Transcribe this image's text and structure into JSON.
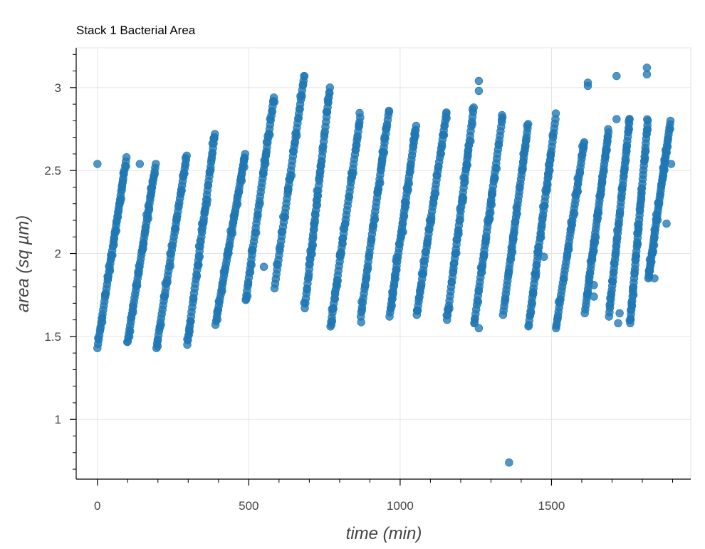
{
  "chart_data": {
    "type": "scatter",
    "title": "Stack 1 Bacterial Area",
    "xlabel": "time (min)",
    "ylabel": "area (sq µm)",
    "xlim": [
      -70,
      1960
    ],
    "ylim": [
      0.64,
      3.24
    ],
    "xticks": [
      0,
      500,
      1000,
      1500
    ],
    "xtick_labels": [
      "0",
      "500",
      "1000",
      "1500"
    ],
    "yticks": [
      1,
      1.5,
      2,
      2.5,
      3
    ],
    "ytick_labels": [
      "1",
      "1.5",
      "2",
      "2.5",
      "3"
    ],
    "x_minor_step": 100,
    "y_minor_step": 0.1,
    "grid": true,
    "legend": "none",
    "marker_color": "#1f77b4",
    "growth_cycles": [
      {
        "start": 0,
        "end": 98,
        "y_start": 1.43,
        "y_end": 2.58
      },
      {
        "start": 100,
        "end": 195,
        "y_start": 1.47,
        "y_end": 2.54
      },
      {
        "start": 195,
        "end": 297,
        "y_start": 1.43,
        "y_end": 2.59
      },
      {
        "start": 297,
        "end": 390,
        "y_start": 1.45,
        "y_end": 2.72
      },
      {
        "start": 390,
        "end": 490,
        "y_start": 1.57,
        "y_end": 2.6
      },
      {
        "start": 490,
        "end": 585,
        "y_start": 1.72,
        "y_end": 2.94
      },
      {
        "start": 585,
        "end": 685,
        "y_start": 1.79,
        "y_end": 3.07
      },
      {
        "start": 685,
        "end": 770,
        "y_start": 1.67,
        "y_end": 3.0
      },
      {
        "start": 770,
        "end": 870,
        "y_start": 1.56,
        "y_end": 2.82
      },
      {
        "start": 870,
        "end": 965,
        "y_start": 1.62,
        "y_end": 2.86
      },
      {
        "start": 965,
        "end": 1055,
        "y_start": 1.62,
        "y_end": 2.77
      },
      {
        "start": 1055,
        "end": 1155,
        "y_start": 1.63,
        "y_end": 2.85
      },
      {
        "start": 1155,
        "end": 1245,
        "y_start": 1.6,
        "y_end": 2.88
      },
      {
        "start": 1245,
        "end": 1340,
        "y_start": 1.58,
        "y_end": 2.82
      },
      {
        "start": 1340,
        "end": 1425,
        "y_start": 1.63,
        "y_end": 2.78
      },
      {
        "start": 1425,
        "end": 1515,
        "y_start": 1.57,
        "y_end": 2.81
      },
      {
        "start": 1515,
        "end": 1610,
        "y_start": 1.55,
        "y_end": 2.67
      },
      {
        "start": 1610,
        "end": 1690,
        "y_start": 1.64,
        "y_end": 2.73
      },
      {
        "start": 1690,
        "end": 1760,
        "y_start": 1.62,
        "y_end": 2.81
      },
      {
        "start": 1760,
        "end": 1820,
        "y_start": 1.58,
        "y_end": 2.8
      },
      {
        "start": 1820,
        "end": 1895,
        "y_start": 1.85,
        "y_end": 2.8
      }
    ],
    "outliers": [
      {
        "x": 0,
        "y": 2.54
      },
      {
        "x": 140,
        "y": 2.54
      },
      {
        "x": 550,
        "y": 1.92
      },
      {
        "x": 1010,
        "y": 2.13
      },
      {
        "x": 1260,
        "y": 1.55
      },
      {
        "x": 1260,
        "y": 2.98
      },
      {
        "x": 1260,
        "y": 3.04
      },
      {
        "x": 1360,
        "y": 0.74
      },
      {
        "x": 1475,
        "y": 1.98
      },
      {
        "x": 1620,
        "y": 3.01
      },
      {
        "x": 1620,
        "y": 3.03
      },
      {
        "x": 1640,
        "y": 1.74
      },
      {
        "x": 1640,
        "y": 1.81
      },
      {
        "x": 1715,
        "y": 3.07
      },
      {
        "x": 1715,
        "y": 2.81
      },
      {
        "x": 1720,
        "y": 1.58
      },
      {
        "x": 1725,
        "y": 1.64
      },
      {
        "x": 1815,
        "y": 3.08
      },
      {
        "x": 1815,
        "y": 3.12
      },
      {
        "x": 1840,
        "y": 1.85
      },
      {
        "x": 1880,
        "y": 2.18
      },
      {
        "x": 1895,
        "y": 2.54
      }
    ]
  }
}
